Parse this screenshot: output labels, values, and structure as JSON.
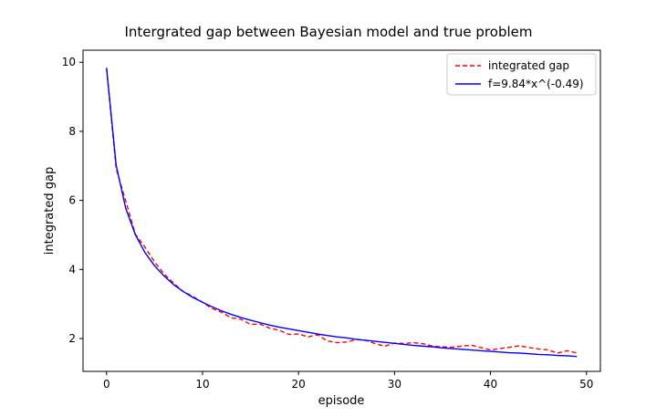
{
  "chart_data": {
    "type": "line",
    "title": "Intergrated gap between Bayesian model and true problem",
    "xlabel": "episode",
    "ylabel": "integrated gap",
    "xlim": [
      -2.45,
      51.45
    ],
    "ylim": [
      1.05,
      10.35
    ],
    "xticks": [
      0,
      10,
      20,
      30,
      40,
      50
    ],
    "yticks": [
      2,
      4,
      6,
      8,
      10
    ],
    "legend": {
      "position": "top-right"
    },
    "grid": false,
    "series": [
      {
        "name": "integrated gap",
        "color": "#ff0000",
        "style": "dashed",
        "x": [
          0,
          1,
          2,
          3,
          4,
          5,
          6,
          7,
          8,
          9,
          10,
          11,
          12,
          13,
          14,
          15,
          16,
          17,
          18,
          19,
          20,
          21,
          22,
          23,
          24,
          25,
          26,
          27,
          28,
          29,
          30,
          31,
          32,
          33,
          34,
          35,
          36,
          37,
          38,
          39,
          40,
          41,
          42,
          43,
          44,
          45,
          46,
          47,
          48,
          49
        ],
        "y": [
          9.82,
          6.92,
          5.98,
          5.02,
          4.65,
          4.22,
          3.87,
          3.6,
          3.36,
          3.22,
          3.05,
          2.87,
          2.76,
          2.6,
          2.56,
          2.41,
          2.42,
          2.3,
          2.24,
          2.12,
          2.13,
          2.05,
          2.11,
          1.93,
          1.88,
          1.9,
          1.97,
          1.95,
          1.85,
          1.78,
          1.87,
          1.86,
          1.88,
          1.85,
          1.78,
          1.76,
          1.75,
          1.78,
          1.81,
          1.74,
          1.67,
          1.71,
          1.75,
          1.79,
          1.74,
          1.7,
          1.67,
          1.58,
          1.65,
          1.58
        ]
      },
      {
        "name": "f=9.84*x^(-0.49)",
        "color": "#0000ff",
        "style": "solid",
        "x": [
          0,
          1,
          2,
          3,
          4,
          5,
          6,
          7,
          8,
          9,
          10,
          11,
          12,
          13,
          14,
          15,
          16,
          17,
          18,
          19,
          20,
          21,
          22,
          23,
          24,
          25,
          26,
          27,
          28,
          29,
          30,
          31,
          32,
          33,
          34,
          35,
          36,
          37,
          38,
          39,
          40,
          41,
          42,
          43,
          44,
          45,
          46,
          47,
          48,
          49
        ],
        "y": [
          9.84,
          7.02,
          5.77,
          5.01,
          4.49,
          4.11,
          3.81,
          3.56,
          3.36,
          3.19,
          3.05,
          2.92,
          2.8,
          2.7,
          2.61,
          2.53,
          2.46,
          2.39,
          2.33,
          2.28,
          2.23,
          2.18,
          2.13,
          2.09,
          2.05,
          2.02,
          1.98,
          1.95,
          1.92,
          1.89,
          1.86,
          1.83,
          1.8,
          1.78,
          1.76,
          1.73,
          1.71,
          1.69,
          1.67,
          1.65,
          1.63,
          1.61,
          1.59,
          1.58,
          1.56,
          1.54,
          1.53,
          1.51,
          1.5,
          1.48
        ]
      }
    ]
  }
}
